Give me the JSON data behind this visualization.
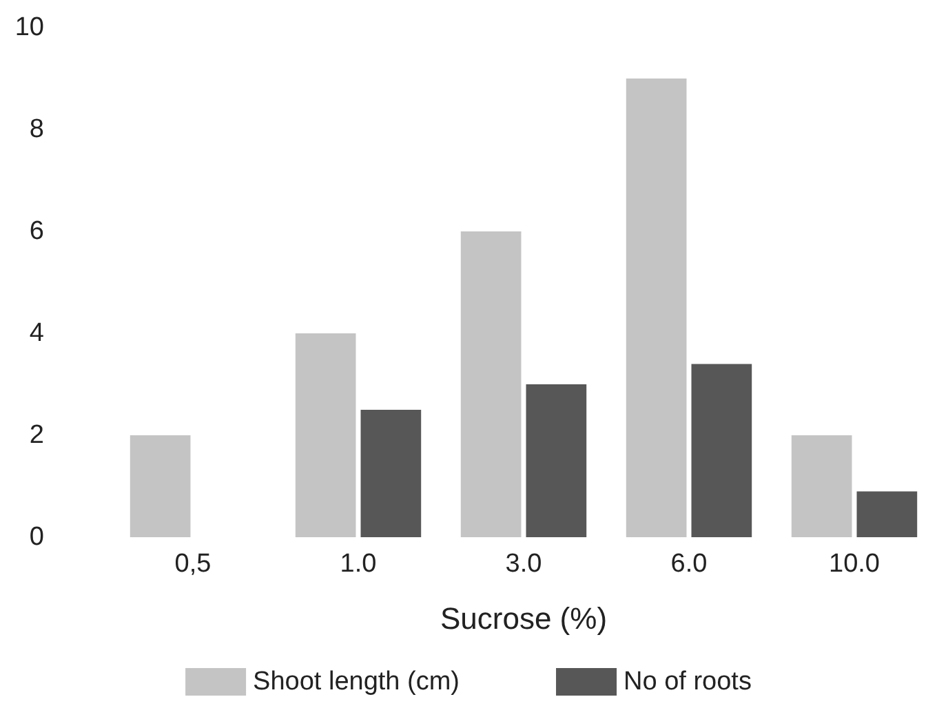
{
  "chart_data": {
    "type": "bar",
    "xlabel": "Sucrose (%)",
    "categories": [
      "0,5",
      "1.0",
      "3.0",
      "6.0",
      "10.0"
    ],
    "series": [
      {
        "name": "Shoot length (cm)",
        "color": "#c4c4c4",
        "values": [
          2,
          4,
          6,
          9,
          2
        ]
      },
      {
        "name": "No of roots",
        "color": "#575757",
        "values": [
          null,
          2.5,
          3,
          3.4,
          0.9
        ]
      }
    ],
    "ylim": [
      0,
      10
    ],
    "yticks": [
      0,
      2,
      4,
      6,
      8,
      10
    ],
    "grid": false,
    "legend": "bottom"
  }
}
